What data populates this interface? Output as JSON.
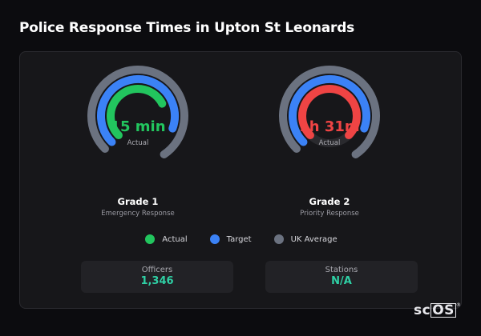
{
  "title": "Police Response Times in Upton St Leonards",
  "gauges": [
    {
      "value": "15 min",
      "sub": "Actual",
      "grade": "Grade 1",
      "desc": "Emergency Response",
      "color": "#e5484d",
      "actual_color": "#22c55e",
      "actual_fraction": 0.55,
      "target_fraction": 0.68,
      "average_fraction": 0.78
    },
    {
      "value": "1h 31m",
      "sub": "Actual",
      "grade": "Grade 2",
      "desc": "Priority Response",
      "actual_color": "#ef4444",
      "actual_fraction": 0.75,
      "target_fraction": 0.68,
      "average_fraction": 0.78
    }
  ],
  "legend": [
    {
      "label": "Actual",
      "color": "#22c55e"
    },
    {
      "label": "Target",
      "color": "#3b82f6"
    },
    {
      "label": "UK Average",
      "color": "#6b7280"
    }
  ],
  "stats": [
    {
      "label": "Officers",
      "value": "1,346"
    },
    {
      "label": "Stations",
      "value": "N/A"
    }
  ],
  "brand": {
    "prefix": "sc",
    "boxed": "OS",
    "mark": "®"
  }
}
